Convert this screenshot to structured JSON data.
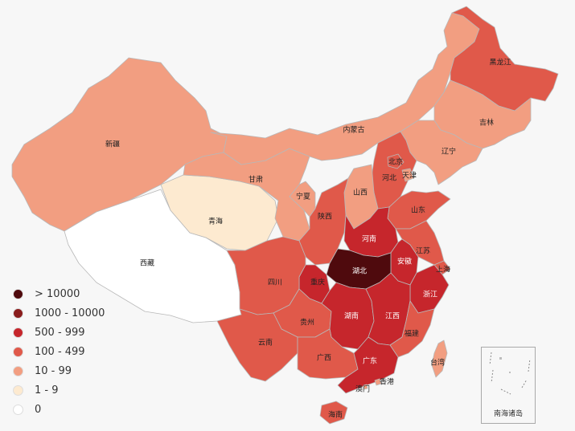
{
  "legend": [
    {
      "label": "> 10000",
      "color": "#4f0a0d"
    },
    {
      "label": "1000 - 10000",
      "color": "#8a1d1d"
    },
    {
      "label": "500 - 999",
      "color": "#c6262c"
    },
    {
      "label": "100 - 499",
      "color": "#e0594a"
    },
    {
      "label": "10 - 99",
      "color": "#f29e81"
    },
    {
      "label": "1 - 9",
      "color": "#fdead0"
    },
    {
      "label": "0",
      "color": "#ffffff"
    }
  ],
  "provinces": [
    {
      "key": "xinjiang",
      "name": "新疆",
      "tier": 4
    },
    {
      "key": "xizang",
      "name": "西藏",
      "tier": 6
    },
    {
      "key": "qinghai",
      "name": "青海",
      "tier": 5
    },
    {
      "key": "gansu",
      "name": "甘肃",
      "tier": 4
    },
    {
      "key": "neimenggu",
      "name": "内蒙古",
      "tier": 4
    },
    {
      "key": "heilongjiang",
      "name": "黑龙江",
      "tier": 3
    },
    {
      "key": "jilin",
      "name": "吉林",
      "tier": 4
    },
    {
      "key": "liaoning",
      "name": "辽宁",
      "tier": 4
    },
    {
      "key": "beijing",
      "name": "北京",
      "tier": 3
    },
    {
      "key": "tianjin",
      "name": "天津",
      "tier": 4
    },
    {
      "key": "hebei",
      "name": "河北",
      "tier": 3
    },
    {
      "key": "shanxi",
      "name": "山西",
      "tier": 4
    },
    {
      "key": "shandong",
      "name": "山东",
      "tier": 3
    },
    {
      "key": "ningxia",
      "name": "宁夏",
      "tier": 4
    },
    {
      "key": "shaanxi",
      "name": "陕西",
      "tier": 3
    },
    {
      "key": "henan",
      "name": "河南",
      "tier": 2
    },
    {
      "key": "jiangsu",
      "name": "江苏",
      "tier": 3
    },
    {
      "key": "anhui",
      "name": "安徽",
      "tier": 2
    },
    {
      "key": "shanghai",
      "name": "上海",
      "tier": 3
    },
    {
      "key": "hubei",
      "name": "湖北",
      "tier": 0
    },
    {
      "key": "chongqing",
      "name": "重庆",
      "tier": 2
    },
    {
      "key": "sichuan",
      "name": "四川",
      "tier": 3
    },
    {
      "key": "zhejiang",
      "name": "浙江",
      "tier": 2
    },
    {
      "key": "guizhou",
      "name": "贵州",
      "tier": 3
    },
    {
      "key": "hunan",
      "name": "湖南",
      "tier": 2
    },
    {
      "key": "jiangxi",
      "name": "江西",
      "tier": 2
    },
    {
      "key": "fujian",
      "name": "福建",
      "tier": 3
    },
    {
      "key": "yunnan",
      "name": "云南",
      "tier": 3
    },
    {
      "key": "guangxi",
      "name": "广西",
      "tier": 3
    },
    {
      "key": "guangdong",
      "name": "广东",
      "tier": 2
    },
    {
      "key": "hainan",
      "name": "海南",
      "tier": 3
    },
    {
      "key": "taiwan",
      "name": "台湾",
      "tier": 4
    },
    {
      "key": "xianggang",
      "name": "香港",
      "tier": 4
    },
    {
      "key": "aomen",
      "name": "澳门",
      "tier": 4
    }
  ],
  "inset_label": "南海诸岛"
}
